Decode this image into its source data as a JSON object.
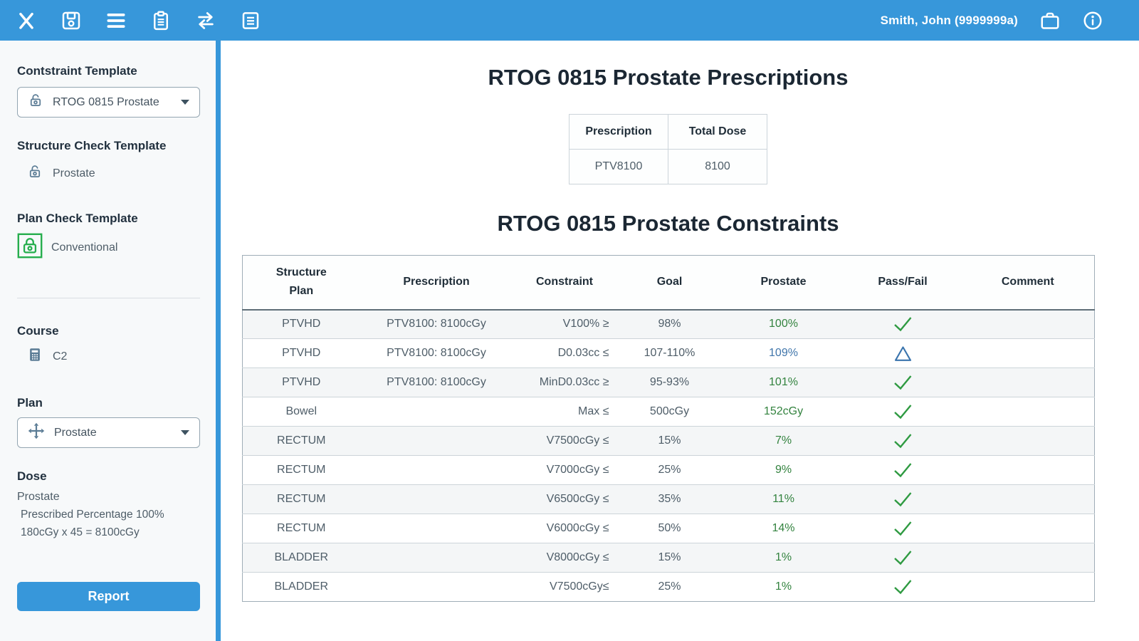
{
  "colors": {
    "accent_blue": "#3797da",
    "pass_green": "#2e9a41",
    "pass_text_green": "#33833f",
    "warning_blue": "#3a74ad",
    "sidebar_icon_slate": "#5b7c95",
    "locked_green": "#27ae4e"
  },
  "topbar": {
    "left_icons": [
      "close-icon",
      "save-icon",
      "menu-icon",
      "clipboard-icon",
      "transfer-icon",
      "notes-icon"
    ],
    "user_name": "Smith, John (9999999a)",
    "right_icons": [
      "briefcase-icon",
      "info-icon"
    ]
  },
  "sidebar": {
    "constraint_template": {
      "label": "Contstraint Template",
      "value": "RTOG 0815 Prostate",
      "icon": "lock-open-icon"
    },
    "structure_check_template": {
      "label": "Structure Check Template",
      "value": "Prostate",
      "icon": "lock-open-icon"
    },
    "plan_check_template": {
      "label": "Plan Check Template",
      "value": "Conventional",
      "icon": "lock-closed-boxed-green-icon"
    },
    "course": {
      "label": "Course",
      "value": "C2",
      "icon": "calculator-icon"
    },
    "plan": {
      "label": "Plan",
      "value": "Prostate",
      "icon": "move-icon"
    },
    "dose": {
      "label": "Dose",
      "plan_name": "Prostate",
      "lines": [
        "Prescribed Percentage 100%",
        "180cGy x 45 = 8100cGy"
      ]
    },
    "report_button": "Report"
  },
  "main": {
    "prescriptions": {
      "title": "RTOG 0815 Prostate Prescriptions",
      "columns": [
        "Prescription",
        "Total Dose"
      ],
      "rows": [
        [
          "PTV8100",
          "8100"
        ]
      ]
    },
    "constraints": {
      "title": "RTOG 0815 Prostate Constraints",
      "columns": [
        "Structure\nPlan",
        "Prescription",
        "Constraint",
        "Goal",
        "Prostate",
        "Pass/Fail",
        "Comment"
      ],
      "rows": [
        {
          "structure": "PTVHD",
          "prescription": "PTV8100: 8100cGy",
          "constraint": "V100% ≥",
          "goal": "98%",
          "result": "100%",
          "status": "pass",
          "comment": ""
        },
        {
          "structure": "PTVHD",
          "prescription": "PTV8100: 8100cGy",
          "constraint": "D0.03cc ≤",
          "goal": "107-110%",
          "result": "109%",
          "status": "warning",
          "comment": ""
        },
        {
          "structure": "PTVHD",
          "prescription": "PTV8100: 8100cGy",
          "constraint": "MinD0.03cc ≥",
          "goal": "95-93%",
          "result": "101%",
          "status": "pass",
          "comment": ""
        },
        {
          "structure": "Bowel",
          "prescription": "",
          "constraint": "Max ≤",
          "goal": "500cGy",
          "result": "152cGy",
          "status": "pass",
          "comment": ""
        },
        {
          "structure": "RECTUM",
          "prescription": "",
          "constraint": "V7500cGy ≤",
          "goal": "15%",
          "result": "7%",
          "status": "pass",
          "comment": ""
        },
        {
          "structure": "RECTUM",
          "prescription": "",
          "constraint": "V7000cGy ≤",
          "goal": "25%",
          "result": "9%",
          "status": "pass",
          "comment": ""
        },
        {
          "structure": "RECTUM",
          "prescription": "",
          "constraint": "V6500cGy ≤",
          "goal": "35%",
          "result": "11%",
          "status": "pass",
          "comment": ""
        },
        {
          "structure": "RECTUM",
          "prescription": "",
          "constraint": "V6000cGy ≤",
          "goal": "50%",
          "result": "14%",
          "status": "pass",
          "comment": ""
        },
        {
          "structure": "BLADDER",
          "prescription": "",
          "constraint": "V8000cGy ≤",
          "goal": "15%",
          "result": "1%",
          "status": "pass",
          "comment": ""
        },
        {
          "structure": "BLADDER",
          "prescription": "",
          "constraint": "V7500cGy≤",
          "goal": "25%",
          "result": "1%",
          "status": "pass",
          "comment": ""
        }
      ]
    }
  }
}
